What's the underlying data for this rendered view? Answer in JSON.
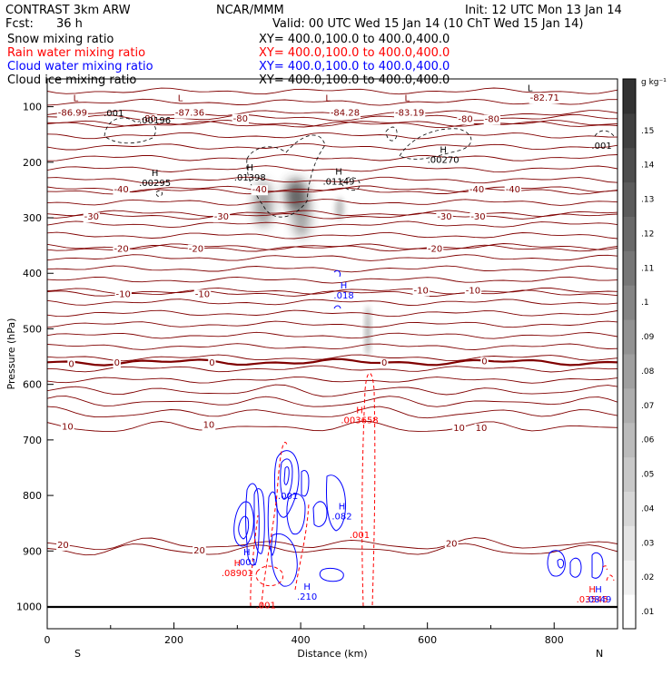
{
  "header": {
    "model": "CONTRAST  3km ARW",
    "org": "NCAR/MMM",
    "init": "Init: 12 UTC Mon 13 Jan 14",
    "fcst_label": "Fcst:",
    "fcst_value": "36 h",
    "valid": "Valid: 00 UTC Wed 15 Jan 14 (10 ChT Wed 15 Jan 14)"
  },
  "legend": [
    {
      "name": "Snow mixing ratio",
      "xy": "XY= 400.0,100.0 to 400.0,400.0",
      "color": "#000000"
    },
    {
      "name": "Rain water mixing ratio",
      "xy": "XY= 400.0,100.0 to 400.0,400.0",
      "color": "#ff0000"
    },
    {
      "name": "Cloud water mixing ratio",
      "xy": "XY= 400.0,100.0 to 400.0,400.0",
      "color": "#0000ff"
    },
    {
      "name": "Cloud ice mixing ratio",
      "xy": "XY= 400.0,100.0 to 400.0,400.0",
      "color": "#000000"
    }
  ],
  "chart_data": {
    "type": "cross-section contour",
    "xlabel": "Distance (km)",
    "ylabel": "Pressure (hPa)",
    "xlim": [
      0,
      900
    ],
    "ylim": [
      1040,
      50
    ],
    "x_ticks": [
      0,
      200,
      400,
      600,
      800
    ],
    "y_ticks": [
      100,
      200,
      300,
      400,
      500,
      600,
      700,
      800,
      900,
      1000
    ],
    "end_labels": {
      "left": "S",
      "right": "N"
    },
    "colorbar": {
      "unit": "g kg⁻¹",
      "ticks": [
        ".01",
        ".02",
        ".03",
        ".04",
        ".05",
        ".06",
        ".07",
        ".08",
        ".09",
        ".1",
        ".11",
        ".12",
        ".13",
        ".14",
        ".15"
      ],
      "range": [
        0.005,
        0.165
      ]
    },
    "temperature_contours": [
      {
        "label": "-86.99",
        "x": 40,
        "p": 110
      },
      {
        "label": "-87.36",
        "x": 225,
        "p": 110
      },
      {
        "label": "-84.28",
        "x": 470,
        "p": 110
      },
      {
        "label": "-83.19",
        "x": 572,
        "p": 110
      },
      {
        "label": "-82.71",
        "x": 785,
        "p": 83
      },
      {
        "label": "-80",
        "x": 160,
        "p": 120
      },
      {
        "label": "-80",
        "x": 305,
        "p": 120
      },
      {
        "label": "-80",
        "x": 660,
        "p": 121
      },
      {
        "label": "-80",
        "x": 702,
        "p": 121
      },
      {
        "label": "-40",
        "x": 117,
        "p": 248
      },
      {
        "label": "-40",
        "x": 335,
        "p": 248
      },
      {
        "label": "-40",
        "x": 678,
        "p": 248
      },
      {
        "label": "-40",
        "x": 735,
        "p": 248
      },
      {
        "label": "-30",
        "x": 70,
        "p": 297
      },
      {
        "label": "-30",
        "x": 275,
        "p": 297
      },
      {
        "label": "-30",
        "x": 627,
        "p": 297
      },
      {
        "label": "-30",
        "x": 680,
        "p": 297
      },
      {
        "label": "-20",
        "x": 117,
        "p": 355
      },
      {
        "label": "-20",
        "x": 235,
        "p": 355
      },
      {
        "label": "-20",
        "x": 612,
        "p": 355
      },
      {
        "label": "-10",
        "x": 120,
        "p": 436
      },
      {
        "label": "-10",
        "x": 245,
        "p": 436
      },
      {
        "label": "-10",
        "x": 590,
        "p": 430
      },
      {
        "label": "-10",
        "x": 672,
        "p": 430
      },
      {
        "label": "0",
        "x": 38,
        "p": 562
      },
      {
        "label": "0",
        "x": 110,
        "p": 560
      },
      {
        "label": "0",
        "x": 260,
        "p": 560
      },
      {
        "label": "0",
        "x": 532,
        "p": 560
      },
      {
        "label": "0",
        "x": 690,
        "p": 557
      },
      {
        "label": "10",
        "x": 32,
        "p": 675
      },
      {
        "label": "10",
        "x": 255,
        "p": 672
      },
      {
        "label": "10",
        "x": 650,
        "p": 677
      },
      {
        "label": "10",
        "x": 685,
        "p": 677
      },
      {
        "label": "20",
        "x": 25,
        "p": 888
      },
      {
        "label": "20",
        "x": 240,
        "p": 898
      },
      {
        "label": "20",
        "x": 638,
        "p": 886
      }
    ],
    "extrema": [
      {
        "type": "L",
        "x": 45,
        "p": 90,
        "color": "#800000"
      },
      {
        "type": "L",
        "x": 210,
        "p": 90,
        "color": "#800000"
      },
      {
        "type": "L",
        "x": 443,
        "p": 90,
        "color": "#800000"
      },
      {
        "type": "L",
        "x": 568,
        "p": 90,
        "color": "#800000"
      },
      {
        "type": "L",
        "x": 762,
        "p": 72,
        "color": "#000000"
      },
      {
        "type": "H",
        "x": 170,
        "p": 225,
        "value": ".00295",
        "color": "#000000"
      },
      {
        "type": "H",
        "x": 320,
        "p": 215,
        "value": ".01398",
        "color": "#000000"
      },
      {
        "type": "H",
        "x": 460,
        "p": 222,
        "value": ".01149",
        "color": "#000000"
      },
      {
        "type": "H",
        "x": 625,
        "p": 183,
        "value": ".00270",
        "color": "#000000"
      },
      {
        "type": "H",
        "x": 468,
        "p": 427,
        "value": ".018",
        "color": "#0000ff"
      },
      {
        "type": "H",
        "x": 493,
        "p": 652,
        "value": ".003658",
        "color": "#ff0000"
      },
      {
        "type": "H",
        "x": 465,
        "p": 825,
        "value": ".082",
        "color": "#0000ff"
      },
      {
        "type": "H",
        "x": 315,
        "p": 908,
        "value": ".001",
        "color": "#0000ff"
      },
      {
        "type": "H",
        "x": 300,
        "p": 927,
        "value": ".08901",
        "color": "#ff0000"
      },
      {
        "type": "H",
        "x": 410,
        "p": 970,
        "value": ".210",
        "color": "#0000ff"
      },
      {
        "type": "H",
        "x": 860,
        "p": 975,
        "value": ".03545",
        "color": "#ff0000"
      },
      {
        "type": "H",
        "x": 870,
        "p": 975,
        "value": ".0849",
        "color": "#0000ff"
      }
    ],
    "other_labels": [
      {
        "text": ".001",
        "x": 105,
        "p": 117,
        "color": "#000000"
      },
      {
        "text": ".00196",
        "x": 170,
        "p": 130,
        "color": "#000000"
      },
      {
        "text": ".001",
        "x": 875,
        "p": 176,
        "color": "#000000"
      },
      {
        "text": ".001",
        "x": 493,
        "p": 877,
        "color": "#ff0000"
      },
      {
        "text": ".001",
        "x": 345,
        "p": 1003,
        "color": "#ff0000"
      },
      {
        "text": ".001",
        "x": 380,
        "p": 806,
        "color": "#0000ff"
      }
    ]
  }
}
